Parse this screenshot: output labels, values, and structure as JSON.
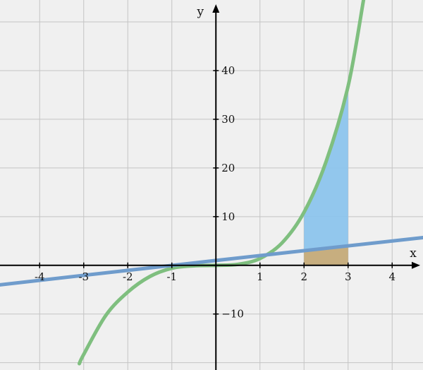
{
  "chart_data": {
    "type": "line",
    "grid": true,
    "xlabel": "x",
    "ylabel": "y",
    "xlim": [
      -4.9,
      4.7
    ],
    "ylim": [
      -21.5,
      54.5
    ],
    "x_ticks": [
      -4,
      -3,
      -2,
      -1,
      1,
      2,
      3,
      4
    ],
    "x_tick_labels": [
      "-4",
      "-3",
      "-2",
      "-1",
      "1",
      "2",
      "3",
      "4"
    ],
    "y_ticks": [
      -10,
      10,
      20,
      30,
      40
    ],
    "y_tick_labels": [
      "−10",
      "10",
      "20",
      "30",
      "40"
    ],
    "series": [
      {
        "color": "#7fbf7f",
        "points": [
          [
            -3.1,
            -20.2
          ],
          [
            -3,
            -18.3
          ],
          [
            -2.5,
            -10.3
          ],
          [
            -2,
            -5.5
          ],
          [
            -1.5,
            -2.3
          ],
          [
            -1,
            -0.6
          ],
          [
            -0.5,
            -0.1
          ],
          [
            0,
            0
          ],
          [
            0.5,
            0.2
          ],
          [
            1,
            1.4
          ],
          [
            1.5,
            4.6
          ],
          [
            2,
            10.9
          ],
          [
            2.5,
            21.3
          ],
          [
            3,
            36.8
          ],
          [
            3.35,
            54.5
          ]
        ]
      },
      {
        "color": "#6f9ccc",
        "points": [
          [
            -4.9,
            -4.0
          ],
          [
            0,
            1.0
          ],
          [
            4.7,
            5.7
          ]
        ]
      }
    ],
    "shaded_regions": [
      {
        "from_x": 2,
        "to_x": 3,
        "between": [
          "line",
          "curve"
        ],
        "color": "#8cc4ec"
      },
      {
        "from_x": 2,
        "to_x": 3,
        "between": [
          "x-axis",
          "line"
        ],
        "color": "#c4aa78"
      }
    ]
  }
}
